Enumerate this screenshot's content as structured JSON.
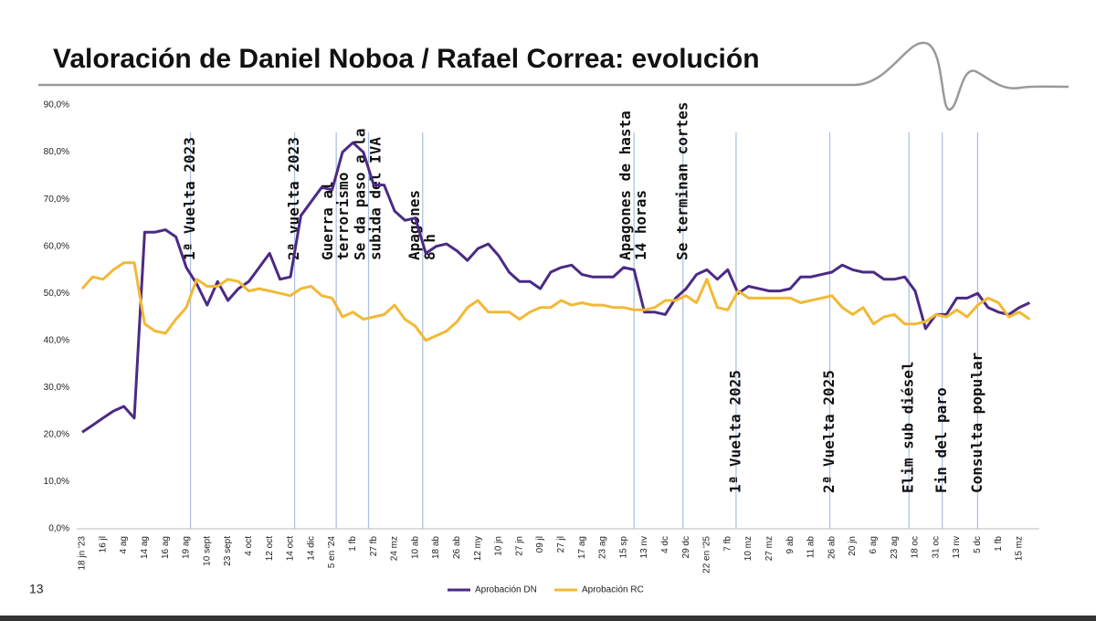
{
  "chart_data": {
    "type": "line",
    "title": "Valoración de Daniel Noboa / Rafael Correa: evolución",
    "page_number": "13",
    "categories": [
      "18 jn '23",
      null,
      "16 jl",
      null,
      "4 ag",
      null,
      "14 ag",
      null,
      "16 ag",
      null,
      "19 ag",
      null,
      "10 sept",
      null,
      "23 sept",
      null,
      "4 oct",
      null,
      "12 oct",
      null,
      "14 oct",
      null,
      "14 dic",
      null,
      "5 en '24",
      null,
      "1 fb",
      null,
      "27 fb",
      null,
      "24 mz",
      null,
      "10 ab",
      null,
      "18 ab",
      null,
      "26 ab",
      null,
      "12 my",
      null,
      "10 jn",
      null,
      "27 jn",
      null,
      "09 jl",
      null,
      "27 jl",
      null,
      "17 ag",
      null,
      "23 ag",
      null,
      "15 sp",
      null,
      "13 nv",
      null,
      "4 dc",
      null,
      "29 dc",
      null,
      "22 en '25",
      null,
      "7 fb",
      null,
      "10 mz",
      null,
      "27 mz",
      null,
      "9 ab",
      null,
      "11 ab",
      null,
      "26 ab",
      null,
      "20 jn",
      null,
      "6 ag",
      null,
      "23 ag",
      null,
      "18 oc",
      null,
      "31 oc",
      null,
      "13 nv",
      null,
      "5 dc",
      null,
      "1 fb",
      null,
      "15 mz",
      null
    ],
    "series": [
      {
        "name": "Aprobación DN",
        "color": "#4b2a85",
        "values": [
          20.5,
          22,
          23.5,
          25,
          26,
          23.5,
          63,
          63,
          63.5,
          62,
          55.5,
          52,
          47.5,
          52.5,
          48.5,
          51,
          52.5,
          55.5,
          58.5,
          53,
          53.5,
          66.5,
          69.5,
          72.5,
          72,
          80,
          82,
          80,
          73,
          73,
          67.5,
          65.5,
          66,
          58.5,
          60,
          60.5,
          59,
          57,
          59.5,
          60.5,
          58,
          54.5,
          52.5,
          52.5,
          51,
          54.5,
          55.5,
          56,
          54,
          53.5,
          53.5,
          53.5,
          55.5,
          55,
          46,
          46,
          45.5,
          49,
          51,
          54,
          55,
          53,
          55,
          50,
          51.5,
          51,
          50.5,
          50.5,
          51,
          53.5,
          53.5,
          54,
          54.5,
          56,
          55,
          54.5,
          54.5,
          53,
          53,
          53.5,
          50.5,
          42.5,
          45.5,
          45.5,
          49,
          49,
          50,
          47,
          46,
          45.5,
          47,
          48
        ]
      },
      {
        "name": "Aprobación RC",
        "color": "#f2b935",
        "values": [
          51,
          53.5,
          53,
          55,
          56.5,
          56.5,
          43.5,
          42,
          41.5,
          44.5,
          47,
          53,
          51.5,
          51.5,
          53,
          52.5,
          50.5,
          51,
          50.5,
          50,
          49.5,
          51,
          51.5,
          49.5,
          49,
          45,
          46,
          44.5,
          45,
          45.5,
          47.5,
          44.5,
          43,
          40,
          41,
          42,
          44,
          47,
          48.5,
          46,
          46,
          46,
          44.5,
          46,
          47,
          47,
          48.5,
          47.5,
          48,
          47.5,
          47.5,
          47,
          47,
          46.5,
          46.5,
          47,
          48.5,
          48.5,
          49.5,
          48,
          53,
          47,
          46.5,
          50.5,
          49,
          49,
          49,
          49,
          49,
          48,
          48.5,
          49,
          49.5,
          47,
          45.5,
          47,
          43.5,
          45,
          45.5,
          43.5,
          43.5,
          44,
          45.5,
          45,
          46.5,
          45,
          47.5,
          49,
          48,
          45,
          46,
          44.5
        ]
      }
    ],
    "ylim": [
      0,
      90
    ],
    "yticks": [
      {
        "value": 0,
        "label": "0,0%"
      },
      {
        "value": 10,
        "label": "10,0%"
      },
      {
        "value": 20,
        "label": "20,0%"
      },
      {
        "value": 30,
        "label": "30,0%"
      },
      {
        "value": 40,
        "label": "40,0%"
      },
      {
        "value": 50,
        "label": "50,0%"
      },
      {
        "value": 60,
        "label": "60,0%"
      },
      {
        "value": 70,
        "label": "70,0%"
      },
      {
        "value": 80,
        "label": "80,0%"
      },
      {
        "value": 90,
        "label": "90,0%"
      }
    ],
    "grid": false,
    "legend": "bottom",
    "events": [
      {
        "position": 10.4,
        "side": "top",
        "label": [
          "1ª Vuelta 2023"
        ]
      },
      {
        "position": 20.4,
        "side": "top",
        "label": [
          "2ª vuelta 2023"
        ]
      },
      {
        "position": 24.4,
        "side": "top",
        "label": [
          "Guerra al",
          "terrorismo"
        ]
      },
      {
        "position": 27.5,
        "side": "top",
        "label": [
          "Se da paso a la",
          "subida del IVA"
        ]
      },
      {
        "position": 32.7,
        "side": "top",
        "label": [
          "Apagones",
          "8 h"
        ]
      },
      {
        "position": 53,
        "side": "top",
        "label": [
          "Apagones de hasta",
          "14 horas"
        ]
      },
      {
        "position": 57.7,
        "side": "top",
        "label": [
          "Se terminan cortes"
        ]
      },
      {
        "position": 62.8,
        "side": "bottom",
        "label": [
          "1ª Vuelta 2025"
        ]
      },
      {
        "position": 71.8,
        "side": "bottom",
        "label": [
          "2ª Vuelta 2025"
        ]
      },
      {
        "position": 79.4,
        "side": "bottom",
        "label": [
          "Elim sub diésel"
        ]
      },
      {
        "position": 82.6,
        "side": "bottom",
        "label": [
          "Fin del paro"
        ]
      },
      {
        "position": 86,
        "side": "bottom",
        "label": [
          "Consulta popular"
        ]
      }
    ]
  }
}
